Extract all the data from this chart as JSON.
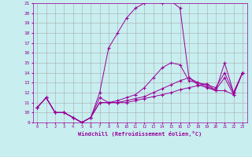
{
  "xlabel": "Windchill (Refroidissement éolien,°C)",
  "background_color": "#c8eef0",
  "line_color": "#990099",
  "grid_color": "#aaaaaa",
  "xlim": [
    -0.5,
    23.5
  ],
  "ylim": [
    9,
    21
  ],
  "xticks": [
    0,
    1,
    2,
    3,
    4,
    5,
    6,
    7,
    8,
    9,
    10,
    11,
    12,
    13,
    14,
    15,
    16,
    17,
    18,
    19,
    20,
    21,
    22,
    23
  ],
  "yticks": [
    9,
    10,
    11,
    12,
    13,
    14,
    15,
    16,
    17,
    18,
    19,
    20,
    21
  ],
  "series": [
    [
      10.5,
      11.5,
      10.0,
      10.0,
      9.5,
      9.0,
      9.5,
      11.0,
      11.0,
      11.0,
      11.0,
      11.2,
      11.4,
      11.6,
      11.8,
      12.0,
      12.3,
      12.5,
      12.7,
      12.9,
      12.2,
      12.2,
      11.8,
      14.0
    ],
    [
      10.5,
      11.5,
      10.0,
      10.0,
      9.5,
      9.0,
      9.5,
      11.0,
      11.0,
      11.0,
      11.2,
      11.4,
      11.6,
      12.0,
      12.4,
      12.8,
      13.2,
      13.5,
      13.0,
      12.6,
      12.3,
      13.5,
      11.8,
      14.0
    ],
    [
      10.5,
      11.5,
      10.0,
      10.0,
      9.5,
      9.0,
      9.5,
      11.5,
      11.0,
      11.2,
      11.5,
      11.8,
      12.5,
      13.5,
      14.5,
      15.0,
      14.8,
      13.2,
      13.0,
      12.8,
      12.5,
      14.0,
      12.0,
      14.0
    ],
    [
      10.5,
      11.5,
      10.0,
      10.0,
      9.5,
      9.0,
      9.5,
      12.0,
      16.5,
      18.0,
      19.5,
      20.5,
      21.0,
      21.2,
      21.0,
      21.2,
      20.5,
      13.5,
      12.8,
      12.5,
      12.2,
      15.0,
      12.0,
      14.0
    ]
  ]
}
